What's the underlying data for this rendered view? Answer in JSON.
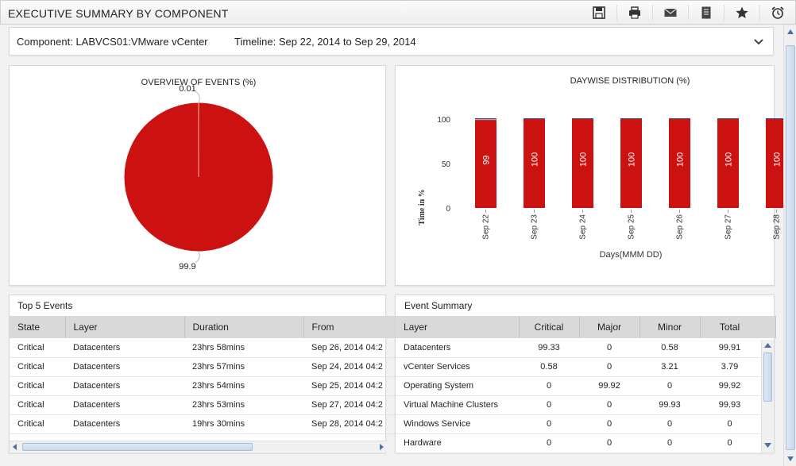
{
  "header": {
    "title": "EXECUTIVE SUMMARY BY COMPONENT",
    "icons": [
      "save-icon",
      "print-icon",
      "email-icon",
      "document-icon",
      "star-icon",
      "alarm-icon"
    ]
  },
  "filter": {
    "component_label": "Component:",
    "component_value": "LABVCS01:VMware vCenter",
    "timeline_label": "Timeline:",
    "timeline_value": "Sep 22, 2014 to Sep 29, 2014"
  },
  "colors": {
    "critical": "#cc1111",
    "header_bg": "#d9d9d9"
  },
  "chart_data": [
    {
      "type": "pie",
      "title": "OVERVIEW OF EVENTS (%)",
      "slices": [
        {
          "label": "0.01",
          "value": 0.01
        },
        {
          "label": "99.9",
          "value": 99.9
        }
      ]
    },
    {
      "type": "bar",
      "title": "DAYWISE DISTRIBUTION (%)",
      "xlabel": "Days(MMM DD)",
      "ylabel": "Time in %",
      "ylim": [
        0,
        100
      ],
      "yticks": [
        0,
        50,
        100
      ],
      "categories": [
        "Sep 22",
        "Sep 23",
        "Sep 24",
        "Sep 25",
        "Sep 26",
        "Sep 27",
        "Sep 28"
      ],
      "values": [
        99,
        100,
        100,
        100,
        100,
        100,
        100
      ]
    }
  ],
  "top_events": {
    "title": "Top 5 Events",
    "columns": [
      "State",
      "Layer",
      "Duration",
      "From"
    ],
    "rows": [
      [
        "Critical",
        "Datacenters",
        "23hrs 58mins",
        "Sep 26, 2014 04:2"
      ],
      [
        "Critical",
        "Datacenters",
        "23hrs 57mins",
        "Sep 24, 2014 04:2"
      ],
      [
        "Critical",
        "Datacenters",
        "23hrs 54mins",
        "Sep 25, 2014 04:2"
      ],
      [
        "Critical",
        "Datacenters",
        "23hrs 53mins",
        "Sep 27, 2014 04:2"
      ],
      [
        "Critical",
        "Datacenters",
        "19hrs 30mins",
        "Sep 28, 2014 04:2"
      ]
    ]
  },
  "event_summary": {
    "title": "Event Summary",
    "columns": [
      "Layer",
      "Critical",
      "Major",
      "Minor",
      "Total"
    ],
    "rows": [
      [
        "Datacenters",
        "99.33",
        "0",
        "0.58",
        "99.91"
      ],
      [
        "vCenter Services",
        "0.58",
        "0",
        "3.21",
        "3.79"
      ],
      [
        "Operating System",
        "0",
        "99.92",
        "0",
        "99.92"
      ],
      [
        "Virtual Machine Clusters",
        "0",
        "0",
        "99.93",
        "99.93"
      ],
      [
        "Windows Service",
        "0",
        "0",
        "0",
        "0"
      ],
      [
        "Hardware",
        "0",
        "0",
        "0",
        "0"
      ]
    ]
  }
}
